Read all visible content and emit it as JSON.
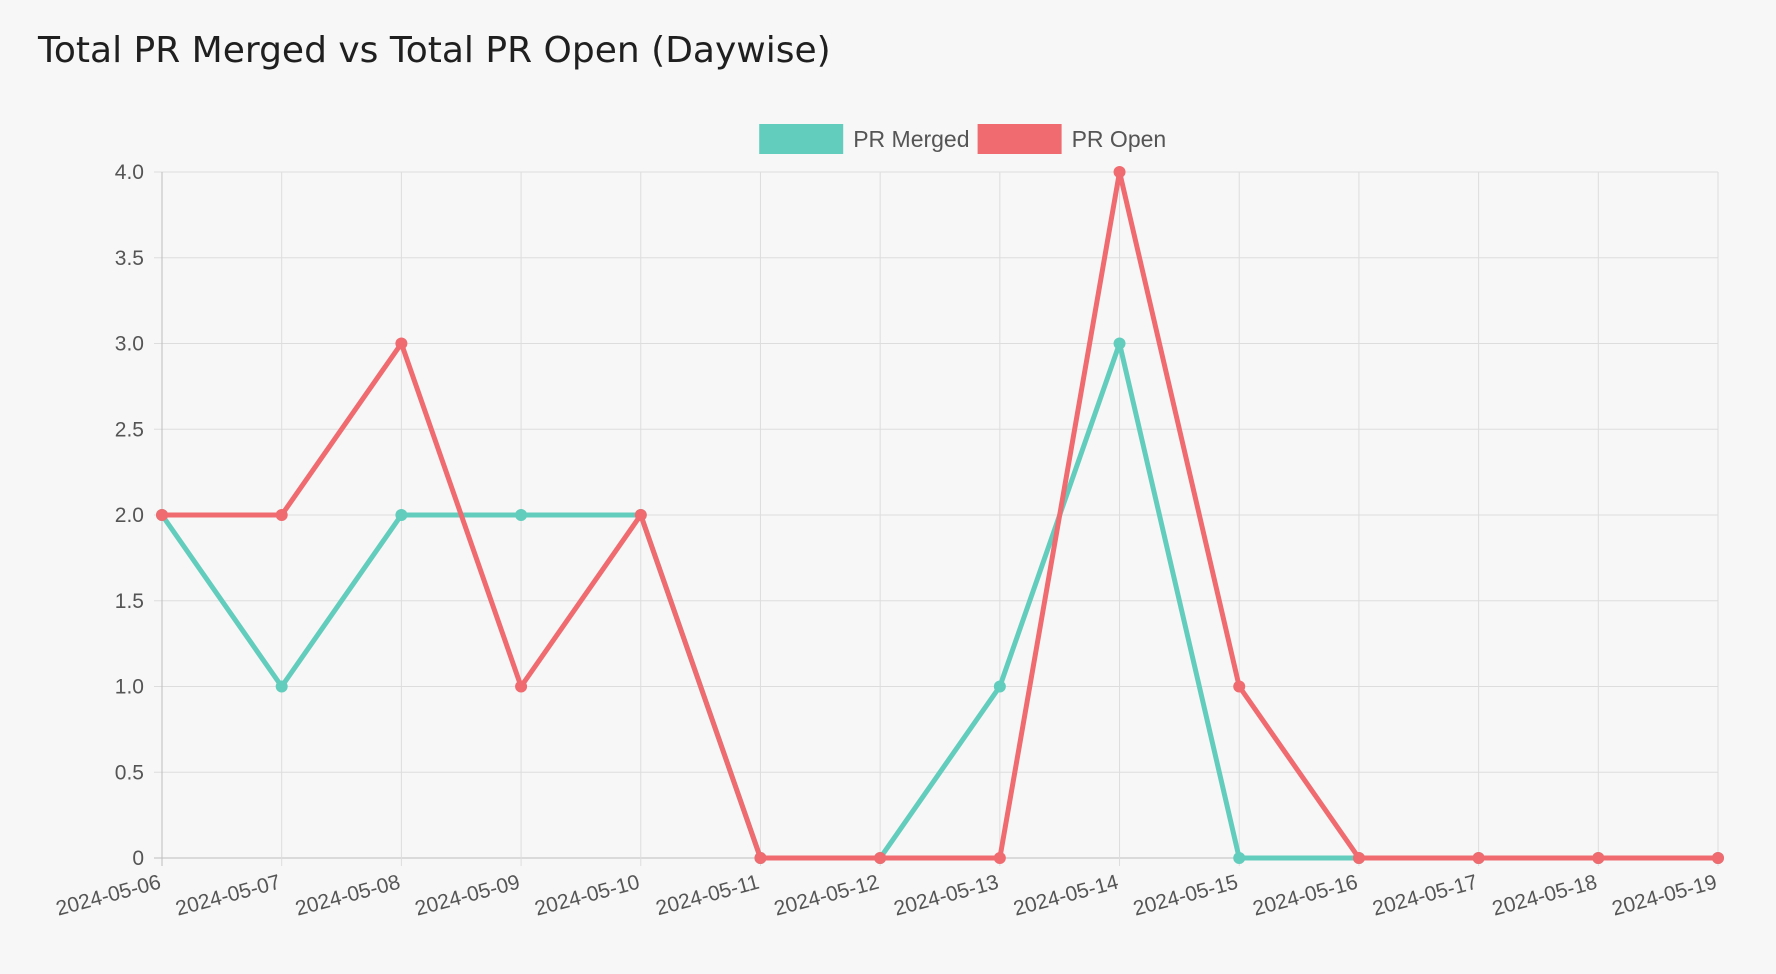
{
  "chart_data": {
    "type": "line",
    "title": "Total PR Merged vs Total PR Open (Daywise)",
    "categories": [
      "2024-05-06",
      "2024-05-07",
      "2024-05-08",
      "2024-05-09",
      "2024-05-10",
      "2024-05-11",
      "2024-05-12",
      "2024-05-13",
      "2024-05-14",
      "2024-05-15",
      "2024-05-16",
      "2024-05-17",
      "2024-05-18",
      "2024-05-19"
    ],
    "series": [
      {
        "name": "PR Merged",
        "color": "#63cdbd",
        "values": [
          2,
          1,
          2,
          2,
          2,
          0,
          0,
          1,
          3,
          0,
          0,
          0,
          0,
          0
        ]
      },
      {
        "name": "PR Open",
        "color": "#f06b6f",
        "values": [
          2,
          2,
          3,
          1,
          2,
          0,
          0,
          0,
          4,
          1,
          0,
          0,
          0,
          0
        ]
      }
    ],
    "ylim": [
      0,
      4
    ],
    "yticks": [
      0,
      0.5,
      1,
      1.5,
      2,
      2.5,
      3,
      3.5,
      4
    ],
    "ytick_labels": [
      "0",
      "0.5",
      "1.0",
      "1.5",
      "2.0",
      "2.5",
      "3.0",
      "3.5",
      "4.0"
    ],
    "grid": true,
    "legend": "top-center"
  }
}
